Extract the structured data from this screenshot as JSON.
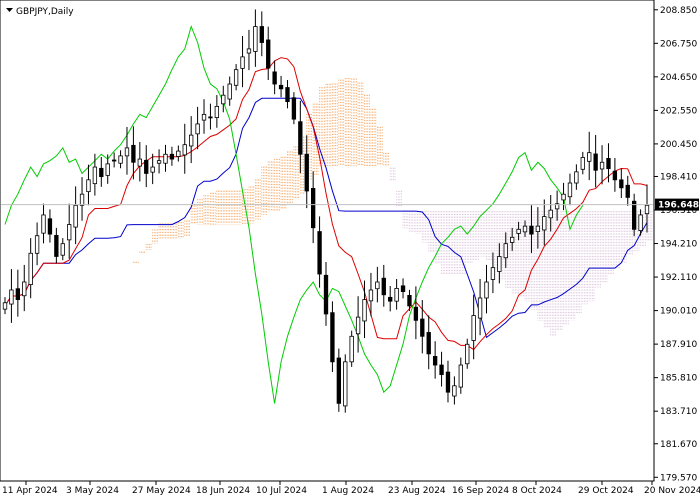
{
  "header": {
    "symbol_label": "GBPJPY,Daily"
  },
  "colors": {
    "candle": "#000000",
    "tenkan": "#dd0000",
    "kijun": "#0000cc",
    "chikou": "#00cc00",
    "cloud_a": "#f4a460",
    "cloud_b": "#d8bfd8",
    "grid_line": "#c0c0c0",
    "price_tag_bg": "#000000"
  },
  "chart_data": {
    "type": "candlestick",
    "title": "GBPJPY,Daily",
    "y_ticks": [
      "208.850",
      "206.750",
      "204.650",
      "202.550",
      "200.450",
      "198.410",
      "196.310",
      "194.210",
      "192.110",
      "190.010",
      "187.910",
      "185.810",
      "183.710",
      "181.670",
      "179.570"
    ],
    "y_tick_values": [
      208.85,
      206.75,
      204.65,
      202.55,
      200.45,
      198.41,
      196.31,
      194.21,
      192.11,
      190.01,
      187.91,
      185.81,
      183.71,
      181.67,
      179.57
    ],
    "ylim": [
      179.4,
      209.4
    ],
    "x_ticks": [
      "11 Apr 2024",
      "3 May 2024",
      "27 May 2024",
      "18 Jun 2024",
      "10 Jul 2024",
      "1 Aug 2024",
      "23 Aug 2024",
      "16 Sep 2024",
      "8 Oct 2024",
      "29 Oct 2024",
      "20 Nov 2024"
    ],
    "last_price": "196.648",
    "last_price_value": 196.648,
    "close": [
      190.5,
      191.3,
      190.7,
      191.8,
      193.6,
      194.7,
      196.0,
      194.8,
      193.4,
      194.2,
      195.4,
      196.6,
      197.3,
      198.2,
      199.0,
      198.4,
      199.2,
      199.4,
      199.7,
      200.2,
      199.3,
      199.5,
      198.6,
      199.0,
      199.4,
      199.8,
      199.5,
      200.0,
      200.4,
      201.0,
      201.7,
      202.3,
      202.1,
      202.8,
      203.5,
      204.2,
      205.1,
      205.9,
      206.4,
      207.8,
      206.8,
      205.2,
      204.2,
      203.9,
      203.1,
      202.0,
      199.8,
      197.5,
      195.2,
      192.3,
      189.8,
      186.8,
      184.2,
      186.8,
      188.4,
      189.6,
      190.7,
      191.3,
      191.8,
      191.0,
      190.6,
      191.4,
      191.2,
      190.3,
      189.4,
      188.4,
      187.3,
      186.6,
      186.0,
      184.9,
      185.3,
      186.6,
      187.9,
      189.7,
      190.8,
      191.8,
      192.7,
      193.4,
      194.2,
      194.6,
      195.1,
      195.3,
      194.8,
      195.3,
      195.9,
      196.3,
      196.7,
      197.3,
      198.0,
      198.7,
      199.6,
      199.9,
      198.8,
      199.3,
      198.9,
      198.2,
      197.7,
      197.1,
      195.1,
      196.0,
      196.6
    ]
  }
}
